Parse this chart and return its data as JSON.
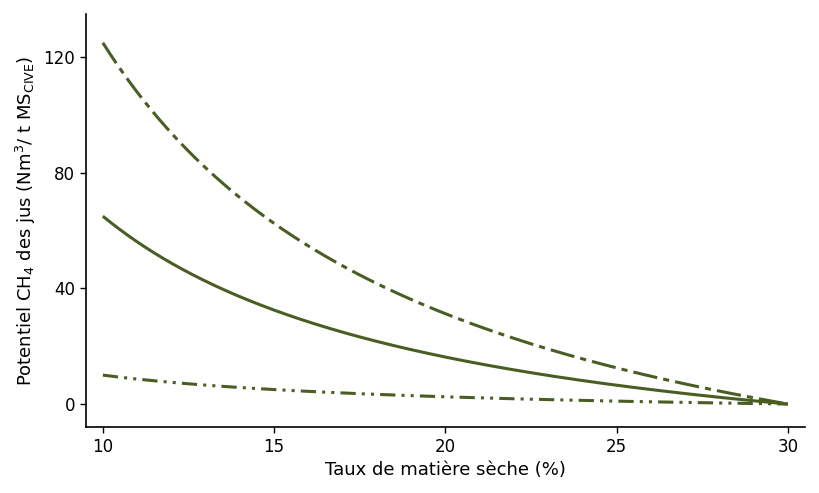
{
  "color": "#4a5e23",
  "x_min": 10,
  "x_max": 30,
  "xlabel": "Taux de matière sèche (%)",
  "yticks": [
    0,
    40,
    80,
    120
  ],
  "xticks": [
    10,
    15,
    20,
    25,
    30
  ],
  "ylim": [
    -8,
    135
  ],
  "xlim": [
    9.5,
    30.5
  ],
  "curve_a_values": [
    125.0,
    65.0,
    10.0
  ],
  "figsize": [
    8.19,
    4.93
  ],
  "dpi": 100,
  "spine_linewidth": 1.2,
  "tick_labelsize": 12,
  "axis_labelsize": 13
}
